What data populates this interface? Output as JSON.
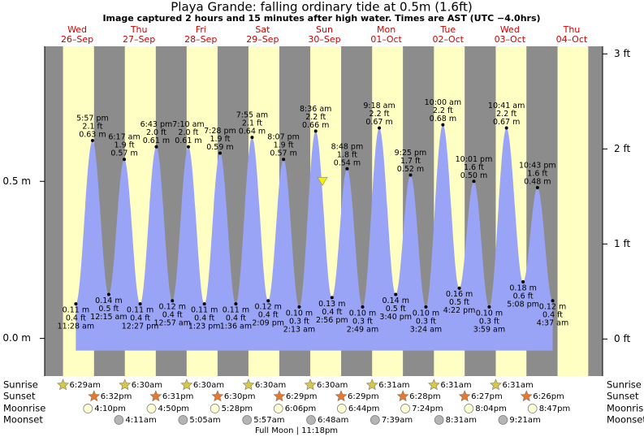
{
  "chart_data": {
    "type": "tide",
    "title": "Playa Grande: falling  ordinary tide at 0.5m (1.6ft)",
    "subtitle": "Image captured 2 hours and 15 minutes after high water. Times are AST (UTC −4.0hrs)",
    "ylim": [
      -0.12,
      0.93
    ],
    "yticks": [
      {
        "value": 0,
        "label": "0.0 m"
      },
      {
        "value": 0.5,
        "label": "0.5 m"
      }
    ],
    "y2lim": [
      -0.39,
      3.08
    ],
    "y2ticks": [
      {
        "value": 0,
        "label": "0 ft"
      },
      {
        "value": 1,
        "label": "1 ft"
      },
      {
        "value": 2,
        "label": "2 ft"
      },
      {
        "value": 3,
        "label": "3 ft"
      }
    ],
    "current_level": 0.5,
    "row_labels": [
      "Sunrise",
      "Sunset",
      "Moonrise",
      "Moonset"
    ],
    "moon_phase": "Full Moon | 11:18pm",
    "days": [
      {
        "name": "Wed",
        "date": "26–Sep",
        "sunrise": "6:29am",
        "sunset": "6:32pm",
        "moonrise": "4:10pm",
        "extremes": [
          {
            "time": "11:28 am",
            "ft": "0.4 ft",
            "value": 0.11,
            "value_label": "0.11 m"
          },
          {
            "time": "5:57 pm",
            "ft": "2.1 ft",
            "value": 0.63,
            "value_label": "0.63 m"
          }
        ]
      },
      {
        "name": "Thu",
        "date": "27–Sep",
        "sunrise": "6:30am",
        "sunset": "6:31pm",
        "moonrise": "4:50pm",
        "moonset": "4:11am",
        "extremes": [
          {
            "time": "12:15 am",
            "ft": "0.5 ft",
            "value": 0.14,
            "value_label": "0.14 m"
          },
          {
            "time": "6:17 am",
            "ft": "1.9 ft",
            "value": 0.57,
            "value_label": "0.57 m"
          },
          {
            "time": "12:27 pm",
            "ft": "0.4 ft",
            "value": 0.11,
            "value_label": "0.11 m"
          },
          {
            "time": "6:43 pm",
            "ft": "2.0 ft",
            "value": 0.61,
            "value_label": "0.61 m"
          }
        ]
      },
      {
        "name": "Fri",
        "date": "28–Sep",
        "sunrise": "6:30am",
        "sunset": "6:30pm",
        "moonrise": "5:28pm",
        "moonset": "5:05am",
        "extremes": [
          {
            "time": "12:57 am",
            "ft": "0.4 ft",
            "value": 0.12,
            "value_label": "0.12 m"
          },
          {
            "time": "7:10 am",
            "ft": "2.0 ft",
            "value": 0.61,
            "value_label": "0.61 m"
          },
          {
            "time": "1:23 pm",
            "ft": "0.4 ft",
            "value": 0.11,
            "value_label": "0.11 m"
          },
          {
            "time": "7:28 pm",
            "ft": "1.9 ft",
            "value": 0.59,
            "value_label": "0.59 m"
          }
        ]
      },
      {
        "name": "Sat",
        "date": "29–Sep",
        "sunrise": "6:30am",
        "sunset": "6:29pm",
        "moonrise": "6:06pm",
        "moonset": "5:57am",
        "extremes": [
          {
            "time": "1:36 am",
            "ft": "0.4 ft",
            "value": 0.11,
            "value_label": "0.11 m"
          },
          {
            "time": "7:55 am",
            "ft": "2.1 ft",
            "value": 0.64,
            "value_label": "0.64 m"
          },
          {
            "time": "2:09 pm",
            "ft": "0.4 ft",
            "value": 0.12,
            "value_label": "0.12 m"
          },
          {
            "time": "8:07 pm",
            "ft": "1.9 ft",
            "value": 0.57,
            "value_label": "0.57 m"
          }
        ]
      },
      {
        "name": "Sun",
        "date": "30–Sep",
        "sunrise": "6:30am",
        "sunset": "6:29pm",
        "moonrise": "6:44pm",
        "moonset": "6:48am",
        "extremes": [
          {
            "time": "2:13 am",
            "ft": "0.3 ft",
            "value": 0.1,
            "value_label": "0.10 m"
          },
          {
            "time": "8:36 am",
            "ft": "2.2 ft",
            "value": 0.66,
            "value_label": "0.66 m"
          },
          {
            "time": "2:56 pm",
            "ft": "0.4 ft",
            "value": 0.13,
            "value_label": "0.13 m"
          },
          {
            "time": "8:48 pm",
            "ft": "1.8 ft",
            "value": 0.54,
            "value_label": "0.54 m"
          }
        ]
      },
      {
        "name": "Mon",
        "date": "01–Oct",
        "sunrise": "6:31am",
        "sunset": "6:28pm",
        "moonrise": "7:24pm",
        "moonset": "7:39am",
        "extremes": [
          {
            "time": "2:49 am",
            "ft": "0.3 ft",
            "value": 0.1,
            "value_label": "0.10 m"
          },
          {
            "time": "9:18 am",
            "ft": "2.2 ft",
            "value": 0.67,
            "value_label": "0.67 m"
          },
          {
            "time": "3:40 pm",
            "ft": "0.5 ft",
            "value": 0.14,
            "value_label": "0.14 m"
          },
          {
            "time": "9:25 pm",
            "ft": "1.7 ft",
            "value": 0.52,
            "value_label": "0.52 m"
          }
        ]
      },
      {
        "name": "Tue",
        "date": "02–Oct",
        "sunrise": "6:31am",
        "sunset": "6:27pm",
        "moonrise": "8:04pm",
        "moonset": "8:31am",
        "extremes": [
          {
            "time": "3:24 am",
            "ft": "0.3 ft",
            "value": 0.1,
            "value_label": "0.10 m"
          },
          {
            "time": "10:00 am",
            "ft": "2.2 ft",
            "value": 0.68,
            "value_label": "0.68 m"
          },
          {
            "time": "4:22 pm",
            "ft": "0.5 ft",
            "value": 0.16,
            "value_label": "0.16 m"
          },
          {
            "time": "10:01 pm",
            "ft": "1.6 ft",
            "value": 0.5,
            "value_label": "0.50 m"
          }
        ]
      },
      {
        "name": "Wed",
        "date": "03–Oct",
        "sunrise": "6:31am",
        "sunset": "6:26pm",
        "moonrise": "8:47pm",
        "moonset": "9:21am",
        "extremes": [
          {
            "time": "3:59 am",
            "ft": "0.3 ft",
            "value": 0.1,
            "value_label": "0.10 m"
          },
          {
            "time": "10:41 am",
            "ft": "2.2 ft",
            "value": 0.67,
            "value_label": "0.67 m"
          },
          {
            "time": "5:08 pm",
            "ft": "0.6 ft",
            "value": 0.18,
            "value_label": "0.18 m"
          },
          {
            "time": "10:43 pm",
            "ft": "1.6 ft",
            "value": 0.48,
            "value_label": "0.48 m"
          }
        ]
      },
      {
        "name": "Thu",
        "date": "04–Oct",
        "extremes": [
          {
            "time": "4:37 am",
            "ft": "0.4 ft",
            "value": 0.12,
            "value_label": "0.12 m"
          }
        ]
      }
    ]
  }
}
